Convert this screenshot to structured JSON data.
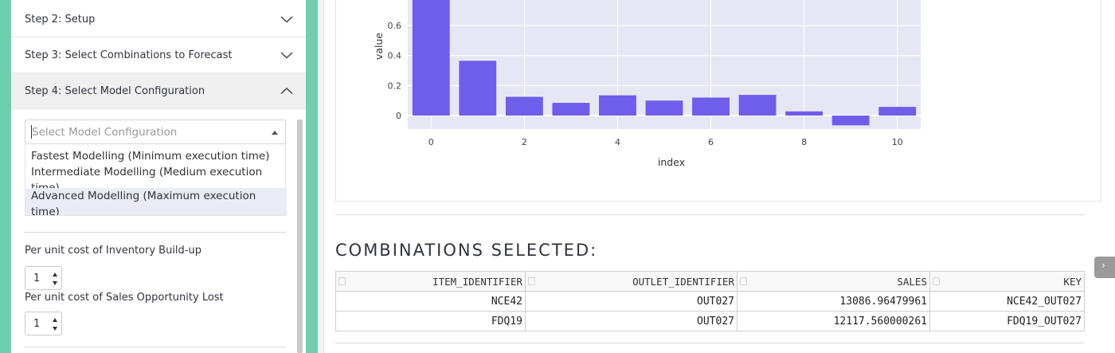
{
  "sidebar": {
    "steps": [
      {
        "label": "Step 2: Setup",
        "expanded": false
      },
      {
        "label": "Step 3: Select Combinations to Forecast",
        "expanded": false
      },
      {
        "label": "Step 4: Select Model Configuration",
        "expanded": true
      }
    ],
    "model_select": {
      "placeholder": "Select Model Configuration",
      "options": [
        "Fastest Modelling (Minimum execution time)",
        "Intermediate Modelling (Medium execution time)",
        "Advanced Modelling (Maximum execution time)"
      ],
      "highlighted_option": 2
    },
    "inventory_cost": {
      "label": "Per unit cost of Inventory Build-up",
      "value": "1"
    },
    "opportunity_cost": {
      "label": "Per unit cost of Sales Opportunity Lost",
      "value": "1"
    }
  },
  "chart_data": {
    "type": "bar",
    "xlabel": "index",
    "ylabel": "value",
    "x": [
      0,
      1,
      2,
      3,
      4,
      5,
      6,
      7,
      8,
      9,
      10
    ],
    "values": [
      0.77,
      0.365,
      0.125,
      0.085,
      0.135,
      0.1,
      0.12,
      0.138,
      0.028,
      -0.065,
      0.058
    ],
    "x_ticks": [
      "0",
      "2",
      "4",
      "6",
      "8",
      "10"
    ],
    "y_ticks": [
      "0",
      "0.2",
      "0.4",
      "0.6"
    ],
    "ylim": [
      -0.09,
      0.77
    ],
    "bar_color": "#6e5ee9",
    "plot_bg": "#e5e8f4"
  },
  "combinations": {
    "title": "COMBINATIONS SELECTED:",
    "columns": [
      "ITEM_IDENTIFIER",
      "OUTLET_IDENTIFIER",
      "SALES",
      "KEY"
    ],
    "rows": [
      [
        "NCE42",
        "OUT027",
        "13086.96479961",
        "NCE42_OUT027"
      ],
      [
        "FDQ19",
        "OUT027",
        "12117.560000261",
        "FDQ19_OUT027"
      ]
    ]
  },
  "colors": {
    "accent_green": "#6dcfae",
    "bar": "#6e5ee9"
  }
}
